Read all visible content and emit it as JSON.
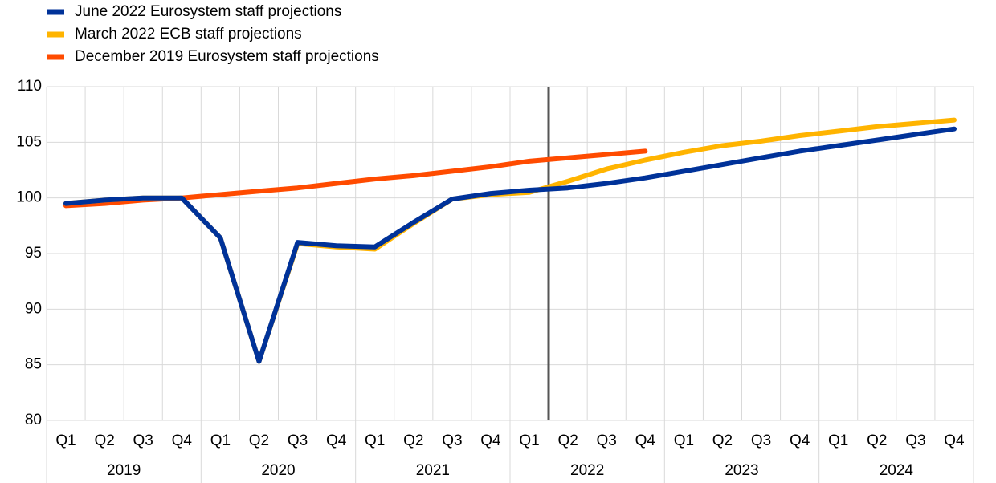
{
  "chart_data": {
    "type": "line",
    "categories": [
      "Q1",
      "Q2",
      "Q3",
      "Q4",
      "Q1",
      "Q2",
      "Q3",
      "Q4",
      "Q1",
      "Q2",
      "Q3",
      "Q4",
      "Q1",
      "Q2",
      "Q3",
      "Q4",
      "Q1",
      "Q2",
      "Q3",
      "Q4",
      "Q1",
      "Q2",
      "Q3",
      "Q4"
    ],
    "category_groups": [
      "2019",
      "2020",
      "2021",
      "2022",
      "2023",
      "2024"
    ],
    "series": [
      {
        "name": "June 2022 Eurosystem staff projections",
        "color": "#003299",
        "values": [
          99.5,
          99.8,
          100.0,
          100.0,
          96.4,
          85.3,
          96.0,
          95.7,
          95.6,
          97.8,
          99.9,
          100.4,
          100.7,
          100.9,
          101.3,
          101.8,
          102.4,
          103.0,
          103.6,
          104.2,
          104.7,
          105.2,
          105.7,
          106.2
        ]
      },
      {
        "name": "March 2022 ECB staff projections",
        "color": "#ffb400",
        "values": [
          99.5,
          99.8,
          100.0,
          100.0,
          96.4,
          85.3,
          95.9,
          95.6,
          95.4,
          97.7,
          99.9,
          100.3,
          100.5,
          101.5,
          102.6,
          103.4,
          104.1,
          104.7,
          105.1,
          105.6,
          106.0,
          106.4,
          106.7,
          107.0
        ]
      },
      {
        "name": "December 2019 Eurosystem staff projections",
        "color": "#ff4b00",
        "values": [
          99.3,
          99.5,
          99.8,
          100.0,
          100.3,
          100.6,
          100.9,
          101.3,
          101.7,
          102.0,
          102.4,
          102.8,
          103.3,
          103.6,
          103.9,
          104.2,
          null,
          null,
          null,
          null,
          null,
          null,
          null,
          null
        ]
      }
    ],
    "ylim": [
      80,
      110
    ],
    "yticks": [
      80,
      85,
      90,
      95,
      100,
      105,
      110
    ],
    "grid": true
  }
}
